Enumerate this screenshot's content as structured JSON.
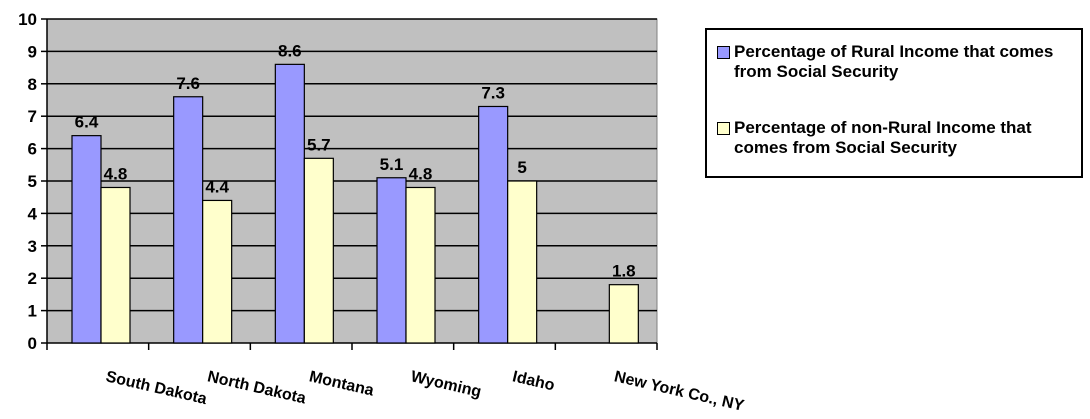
{
  "chart_data": {
    "type": "bar",
    "categories": [
      "South Dakota",
      "North Dakota",
      "Montana",
      "Wyoming",
      "Idaho",
      "New York Co., NY"
    ],
    "series": [
      {
        "name": "Percentage of Rural Income that comes from Social Security",
        "color": "#9999ff",
        "values": [
          6.4,
          7.6,
          8.6,
          5.1,
          7.3,
          null
        ],
        "labels": [
          "6.4",
          "7.6",
          "8.6",
          "5.1",
          "7.3",
          ""
        ]
      },
      {
        "name": "Percentage of non-Rural Income that comes from Social Security",
        "color": "#ffffcc",
        "values": [
          4.8,
          4.4,
          5.7,
          4.8,
          5,
          1.8
        ],
        "labels": [
          "4.8",
          "4.4",
          "5.7",
          "4.8",
          "5",
          "1.8"
        ]
      }
    ],
    "ylim": [
      0,
      10
    ],
    "yticks": [
      "0",
      "1",
      "2",
      "3",
      "4",
      "5",
      "6",
      "7",
      "8",
      "9",
      "10"
    ],
    "grid": true,
    "plot_background": "#c0c0c0",
    "legend_position": "top-right",
    "title": "",
    "xlabel": "",
    "ylabel": ""
  },
  "legend": {
    "item1": "Percentage of Rural Income that comes from Social Security",
    "item2": "Percentage of non-Rural Income that comes from Social Security"
  }
}
